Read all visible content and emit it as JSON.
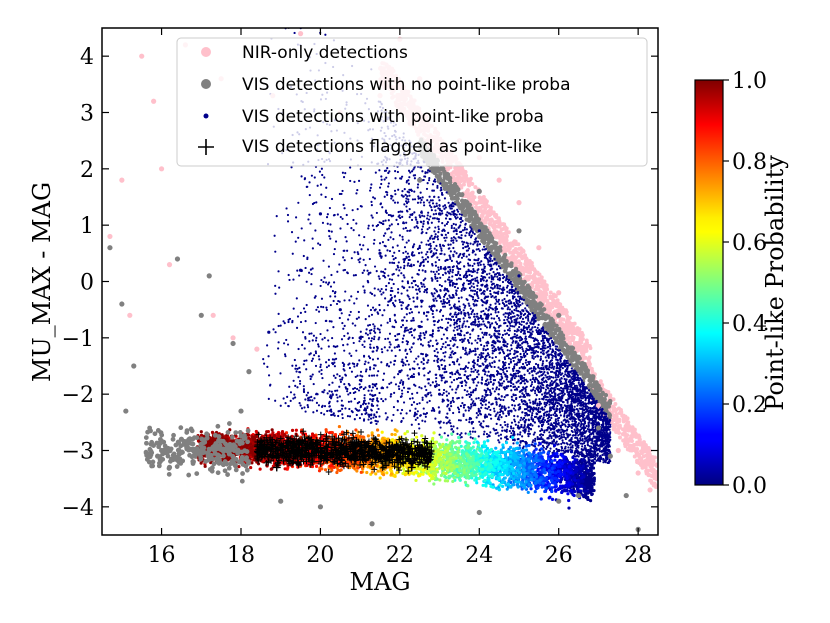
{
  "chart_data": {
    "type": "scatter",
    "xlabel": "MAG",
    "ylabel": "MU_MAX - MAG",
    "xlim": [
      14.5,
      28.5
    ],
    "ylim": [
      -4.5,
      4.5
    ],
    "x_ticks": [
      "16",
      "18",
      "20",
      "22",
      "24",
      "26",
      "28"
    ],
    "y_ticks": [
      "−4",
      "−3",
      "−2",
      "−1",
      "0",
      "1",
      "2",
      "3",
      "4"
    ],
    "x_tick_values": [
      16,
      18,
      20,
      22,
      24,
      26,
      28
    ],
    "y_tick_values": [
      -4,
      -3,
      -2,
      -1,
      0,
      1,
      2,
      3,
      4
    ],
    "colors": {
      "nir": "#ffc0cb",
      "vis_noproba": "#808080",
      "vis_proba": "#00008b",
      "flagged": "#000000"
    },
    "legend": [
      {
        "label": "NIR-only detections",
        "marker": "dot-large",
        "color": "#ffc0cb"
      },
      {
        "label": "VIS detections with no point-like proba",
        "marker": "dot-large",
        "color": "#808080"
      },
      {
        "label": "VIS detections with point-like proba",
        "marker": "dot-small",
        "color": "#00008b"
      },
      {
        "label": "VIS detections flagged as point-like",
        "marker": "plus",
        "color": "#000000"
      }
    ],
    "colorbar": {
      "label": "Point-like Probability",
      "range": [
        0.0,
        1.0
      ],
      "ticks": [
        "0.0",
        "0.2",
        "0.4",
        "0.6",
        "0.8",
        "1.0"
      ],
      "tick_values": [
        0.0,
        0.2,
        0.4,
        0.6,
        0.8,
        1.0
      ],
      "colormap": "jet"
    },
    "series": [
      {
        "name": "NIR-only detections",
        "points": [
          [
            15.5,
            4.0
          ],
          [
            15.8,
            3.2
          ],
          [
            16.0,
            2.0
          ],
          [
            16.6,
            4.2
          ],
          [
            17.5,
            3.6
          ],
          [
            18.8,
            3.3
          ],
          [
            19.5,
            4.4
          ],
          [
            20.5,
            3.0
          ],
          [
            21.5,
            3.3
          ],
          [
            22.0,
            4.3
          ],
          [
            22.5,
            3.6
          ],
          [
            23.0,
            2.3
          ],
          [
            23.5,
            2.5
          ],
          [
            24.0,
            2.2
          ],
          [
            24.5,
            1.8
          ],
          [
            25.0,
            1.4
          ],
          [
            25.5,
            0.6
          ],
          [
            26.0,
            -0.2
          ],
          [
            26.5,
            -1.1
          ],
          [
            27.0,
            -2.2
          ],
          [
            27.5,
            -3.0
          ],
          [
            28.0,
            -3.4
          ],
          [
            28.3,
            -3.7
          ],
          [
            15.0,
            1.8
          ],
          [
            15.2,
            -0.6
          ],
          [
            16.2,
            0.3
          ],
          [
            17.3,
            -0.6
          ],
          [
            17.8,
            -1.0
          ],
          [
            18.4,
            -1.2
          ],
          [
            14.7,
            0.8
          ]
        ]
      },
      {
        "name": "VIS detections with no point-like proba",
        "points": [
          [
            15.0,
            -0.4
          ],
          [
            14.7,
            0.6
          ],
          [
            15.3,
            -1.5
          ],
          [
            15.1,
            -2.3
          ],
          [
            16.0,
            -3.0
          ],
          [
            16.2,
            -3.3
          ],
          [
            15.9,
            -3.1
          ],
          [
            16.5,
            -2.8
          ],
          [
            16.8,
            -3.2
          ],
          [
            17.2,
            0.1
          ],
          [
            17.0,
            -0.6
          ],
          [
            16.4,
            0.4
          ],
          [
            17.8,
            -1.1
          ],
          [
            18.2,
            -1.6
          ],
          [
            18.0,
            -2.3
          ],
          [
            19.0,
            -3.9
          ],
          [
            20.0,
            -4.0
          ],
          [
            21.3,
            -4.3
          ],
          [
            24.0,
            -4.1
          ],
          [
            26.0,
            -3.9
          ],
          [
            26.5,
            -3.8
          ],
          [
            27.7,
            -3.8
          ],
          [
            28.0,
            -4.4
          ],
          [
            22.5,
            1.8
          ],
          [
            23.2,
            1.9
          ],
          [
            24.0,
            1.6
          ],
          [
            25.0,
            0.9
          ],
          [
            26.0,
            -0.6
          ],
          [
            26.6,
            -1.5
          ],
          [
            27.0,
            -2.6
          ],
          [
            27.3,
            -3.1
          ]
        ]
      },
      {
        "name": "VIS detections with point-like proba",
        "points": [
          [
            22.0,
            2.1
          ],
          [
            23.0,
            1.2
          ],
          [
            24.0,
            0.9
          ],
          [
            25.0,
            0.1
          ],
          [
            26.0,
            -1.3
          ],
          [
            27.0,
            -2.8
          ],
          [
            20.5,
            -0.5
          ],
          [
            21.0,
            -1.0
          ],
          [
            22.0,
            -1.6
          ],
          [
            23.0,
            -2.0
          ],
          [
            24.0,
            -2.3
          ],
          [
            25.0,
            -2.6
          ],
          [
            26.0,
            -3.0
          ],
          [
            21.5,
            0.5
          ],
          [
            23.5,
            -0.5
          ],
          [
            19.5,
            0.2
          ],
          [
            18.7,
            -0.9
          ],
          [
            24.5,
            -1.2
          ],
          [
            25.5,
            -1.8
          ],
          [
            26.5,
            -2.4
          ],
          [
            20.0,
            1.2
          ],
          [
            22.5,
            -0.8
          ]
        ]
      },
      {
        "name": "VIS detections flagged as point-like",
        "points": [
          [
            18.5,
            -2.9
          ],
          [
            19.0,
            -3.0
          ],
          [
            19.5,
            -3.1
          ],
          [
            20.0,
            -2.95
          ],
          [
            20.5,
            -3.05
          ],
          [
            21.0,
            -3.0
          ],
          [
            21.5,
            -3.1
          ],
          [
            22.0,
            -3.15
          ],
          [
            22.3,
            -3.3
          ],
          [
            19.8,
            -3.2
          ],
          [
            20.8,
            -2.85
          ],
          [
            21.8,
            -2.95
          ],
          [
            19.2,
            -2.85
          ],
          [
            18.9,
            -3.3
          ]
        ]
      }
    ],
    "point_like_band": {
      "mag_range": [
        16.9,
        26.9
      ],
      "center_y": [
        -2.95,
        -3.5
      ],
      "probability_trend": [
        1.0,
        0.0
      ]
    }
  }
}
